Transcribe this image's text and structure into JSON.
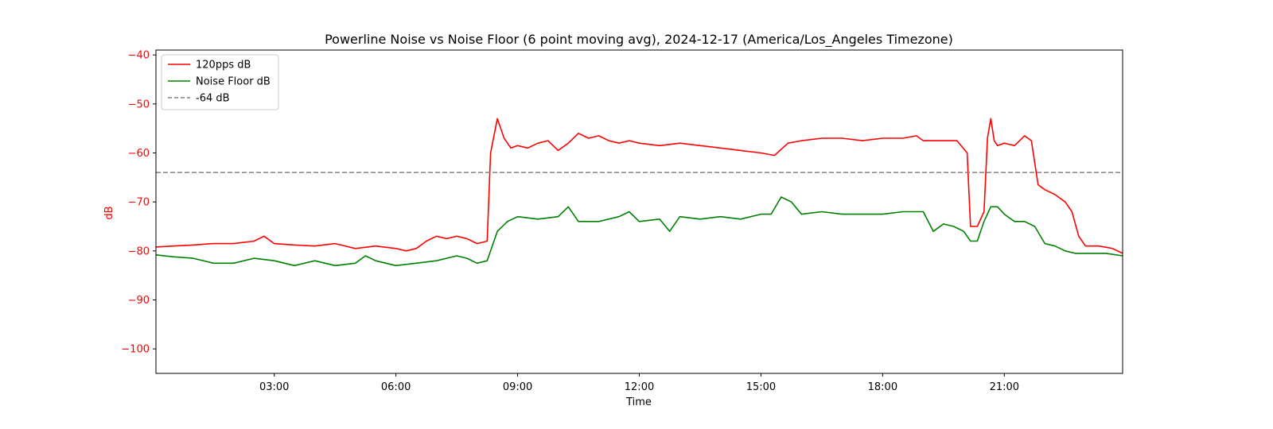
{
  "chart_data": {
    "type": "line",
    "title": "Powerline Noise vs Noise Floor (6 point moving avg), 2024-12-17 (America/Los_Angeles Timezone)",
    "xlabel": "Time",
    "ylabel": "dB",
    "xlim": [
      "00:05",
      "23:55"
    ],
    "ylim": [
      -105,
      -39
    ],
    "x_ticks": [
      "03:00",
      "06:00",
      "09:00",
      "12:00",
      "15:00",
      "18:00",
      "21:00"
    ],
    "y_ticks": [
      -40,
      -50,
      -60,
      -70,
      -80,
      -90,
      -100
    ],
    "grid": false,
    "legend_position": "upper-left",
    "y_axis_color": "#ff0000",
    "series": [
      {
        "name": "120pps dB",
        "color": "#ff0000",
        "style": "solid",
        "x": [
          "00:05",
          "00:30",
          "01:00",
          "01:30",
          "02:00",
          "02:30",
          "02:45",
          "03:00",
          "03:30",
          "04:00",
          "04:30",
          "05:00",
          "05:30",
          "06:00",
          "06:15",
          "06:30",
          "06:45",
          "07:00",
          "07:15",
          "07:30",
          "07:45",
          "08:00",
          "08:15",
          "08:20",
          "08:30",
          "08:40",
          "08:50",
          "09:00",
          "09:15",
          "09:30",
          "09:45",
          "10:00",
          "10:15",
          "10:30",
          "10:45",
          "11:00",
          "11:15",
          "11:30",
          "11:45",
          "12:00",
          "12:30",
          "13:00",
          "13:30",
          "14:00",
          "14:30",
          "15:00",
          "15:20",
          "15:40",
          "16:00",
          "16:30",
          "17:00",
          "17:30",
          "18:00",
          "18:30",
          "18:50",
          "19:00",
          "19:30",
          "19:50",
          "20:05",
          "20:10",
          "20:20",
          "20:30",
          "20:35",
          "20:40",
          "20:45",
          "20:50",
          "21:00",
          "21:15",
          "21:30",
          "21:40",
          "21:50",
          "21:55",
          "22:00",
          "22:15",
          "22:30",
          "22:40",
          "22:50",
          "23:00",
          "23:20",
          "23:40",
          "23:55"
        ],
        "y": [
          -79.2,
          -79.0,
          -78.8,
          -78.5,
          -78.5,
          -78.0,
          -77.0,
          -78.5,
          -78.8,
          -79.0,
          -78.5,
          -79.5,
          -79.0,
          -79.5,
          -80.0,
          -79.5,
          -78.0,
          -77.0,
          -77.5,
          -77.0,
          -77.5,
          -78.5,
          -78.0,
          -60.0,
          -53.0,
          -57.0,
          -59.0,
          -58.5,
          -59.0,
          -58.0,
          -57.5,
          -59.5,
          -58.0,
          -56.0,
          -57.0,
          -56.5,
          -57.5,
          -58.0,
          -57.5,
          -58.0,
          -58.5,
          -58.0,
          -58.5,
          -59.0,
          -59.5,
          -60.0,
          -60.5,
          -58.0,
          -57.5,
          -57.0,
          -57.0,
          -57.5,
          -57.0,
          -57.0,
          -56.5,
          -57.5,
          -57.5,
          -57.5,
          -60.0,
          -75.0,
          -75.0,
          -72.0,
          -57.0,
          -53.0,
          -57.5,
          -58.5,
          -58.0,
          -58.5,
          -56.5,
          -57.5,
          -66.5,
          -67.0,
          -67.5,
          -68.5,
          -70.0,
          -72.0,
          -77.0,
          -79.0,
          -79.0,
          -79.5,
          -80.5
        ]
      },
      {
        "name": "Noise Floor dB",
        "color": "#008000",
        "style": "solid",
        "x": [
          "00:05",
          "00:30",
          "01:00",
          "01:30",
          "02:00",
          "02:30",
          "03:00",
          "03:30",
          "04:00",
          "04:30",
          "05:00",
          "05:15",
          "05:30",
          "06:00",
          "06:30",
          "07:00",
          "07:30",
          "07:45",
          "08:00",
          "08:15",
          "08:20",
          "08:30",
          "08:45",
          "09:00",
          "09:30",
          "10:00",
          "10:15",
          "10:30",
          "11:00",
          "11:30",
          "11:45",
          "12:00",
          "12:30",
          "12:45",
          "13:00",
          "13:30",
          "14:00",
          "14:30",
          "15:00",
          "15:15",
          "15:30",
          "15:45",
          "16:00",
          "16:30",
          "17:00",
          "17:30",
          "18:00",
          "18:30",
          "19:00",
          "19:15",
          "19:30",
          "19:45",
          "20:00",
          "20:10",
          "20:20",
          "20:30",
          "20:40",
          "20:50",
          "21:00",
          "21:15",
          "21:30",
          "21:45",
          "22:00",
          "22:15",
          "22:30",
          "22:45",
          "23:00",
          "23:30",
          "23:55"
        ],
        "y": [
          -80.8,
          -81.2,
          -81.5,
          -82.5,
          -82.5,
          -81.5,
          -82.0,
          -83.0,
          -82.0,
          -83.0,
          -82.5,
          -81.0,
          -82.0,
          -83.0,
          -82.5,
          -82.0,
          -81.0,
          -81.5,
          -82.5,
          -82.0,
          -80.0,
          -76.0,
          -74.0,
          -73.0,
          -73.5,
          -73.0,
          -71.0,
          -74.0,
          -74.0,
          -73.0,
          -72.0,
          -74.0,
          -73.5,
          -76.0,
          -73.0,
          -73.5,
          -73.0,
          -73.5,
          -72.5,
          -72.5,
          -69.0,
          -70.0,
          -72.5,
          -72.0,
          -72.5,
          -72.5,
          -72.5,
          -72.0,
          -72.0,
          -76.0,
          -74.5,
          -75.0,
          -76.0,
          -78.0,
          -78.0,
          -74.0,
          -71.0,
          -71.0,
          -72.5,
          -74.0,
          -74.0,
          -75.0,
          -78.5,
          -79.0,
          -80.0,
          -80.5,
          -80.5,
          -80.5,
          -81.0
        ]
      },
      {
        "name": "-64 dB",
        "color": "#808080",
        "style": "dashed",
        "constant": -64
      }
    ]
  }
}
